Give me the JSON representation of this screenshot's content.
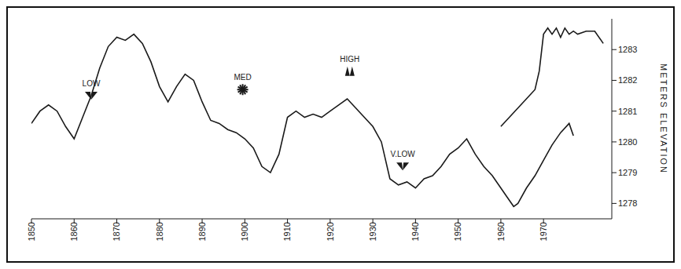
{
  "chart_data": {
    "type": "line",
    "y_label": "METERS ELEVATION",
    "xlim": [
      1850,
      1986
    ],
    "xticks": [
      1850,
      1860,
      1870,
      1880,
      1890,
      1900,
      1910,
      1920,
      1930,
      1940,
      1950,
      1960,
      1970
    ],
    "ylim": [
      1277.5,
      1284
    ],
    "yticks": [
      1278,
      1279,
      1280,
      1281,
      1282,
      1283
    ],
    "grid": false,
    "series": [
      {
        "color": "#1a1a1a",
        "x": [
          1850,
          1852,
          1854,
          1856,
          1858,
          1860,
          1862,
          1864,
          1866,
          1868,
          1870,
          1872,
          1874,
          1876,
          1878,
          1880,
          1882,
          1884,
          1886,
          1888,
          1890,
          1892,
          1894,
          1896,
          1898,
          1900,
          1902,
          1904,
          1906,
          1908,
          1910,
          1912,
          1914,
          1916,
          1918,
          1920,
          1922,
          1924,
          1926,
          1928,
          1930,
          1932,
          1934,
          1936,
          1938,
          1940,
          1942,
          1944,
          1946,
          1948,
          1950,
          1952,
          1954,
          1956,
          1958,
          1960,
          1962,
          1963,
          1964,
          1966,
          1968,
          1970,
          1972,
          1974,
          1976,
          1977
        ],
        "values": [
          1280.6,
          1281.0,
          1281.2,
          1281.0,
          1280.5,
          1280.1,
          1280.8,
          1281.5,
          1282.4,
          1283.1,
          1283.4,
          1283.3,
          1283.5,
          1283.2,
          1282.6,
          1281.8,
          1281.3,
          1281.8,
          1282.2,
          1282.0,
          1281.3,
          1280.7,
          1280.6,
          1280.4,
          1280.3,
          1280.1,
          1279.8,
          1279.2,
          1279.0,
          1279.6,
          1280.8,
          1281.0,
          1280.8,
          1280.9,
          1280.8,
          1281.0,
          1281.2,
          1281.4,
          1281.1,
          1280.8,
          1280.5,
          1280.0,
          1278.8,
          1278.6,
          1278.7,
          1278.5,
          1278.8,
          1278.9,
          1279.2,
          1279.6,
          1279.8,
          1280.1,
          1279.6,
          1279.2,
          1278.9,
          1278.5,
          1278.1,
          1277.9,
          1278.0,
          1278.5,
          1278.9,
          1279.4,
          1279.9,
          1280.3,
          1280.6,
          1280.2
        ]
      },
      {
        "color": "#1a1a1a",
        "x": [
          1960,
          1962,
          1964,
          1966,
          1968,
          1969,
          1970,
          1971,
          1972,
          1973,
          1974,
          1975,
          1976,
          1977,
          1978,
          1980,
          1982,
          1984
        ],
        "values": [
          1280.5,
          1280.8,
          1281.1,
          1281.4,
          1281.7,
          1282.3,
          1283.5,
          1283.7,
          1283.5,
          1283.7,
          1283.4,
          1283.7,
          1283.5,
          1283.6,
          1283.5,
          1283.6,
          1283.6,
          1283.2
        ]
      }
    ],
    "annotations": [
      {
        "label": "LOW",
        "x": 1864,
        "y": 1281.5,
        "marker": "triangle-down"
      },
      {
        "label": "MED",
        "x": 1899.5,
        "y": 1281.7,
        "marker": "star"
      },
      {
        "label": "HIGH",
        "x": 1924.6,
        "y": 1282.3,
        "marker": "triangle-up"
      },
      {
        "label": "V.LOW",
        "x": 1937,
        "y": 1279.2,
        "marker": "triangle-down"
      }
    ]
  }
}
